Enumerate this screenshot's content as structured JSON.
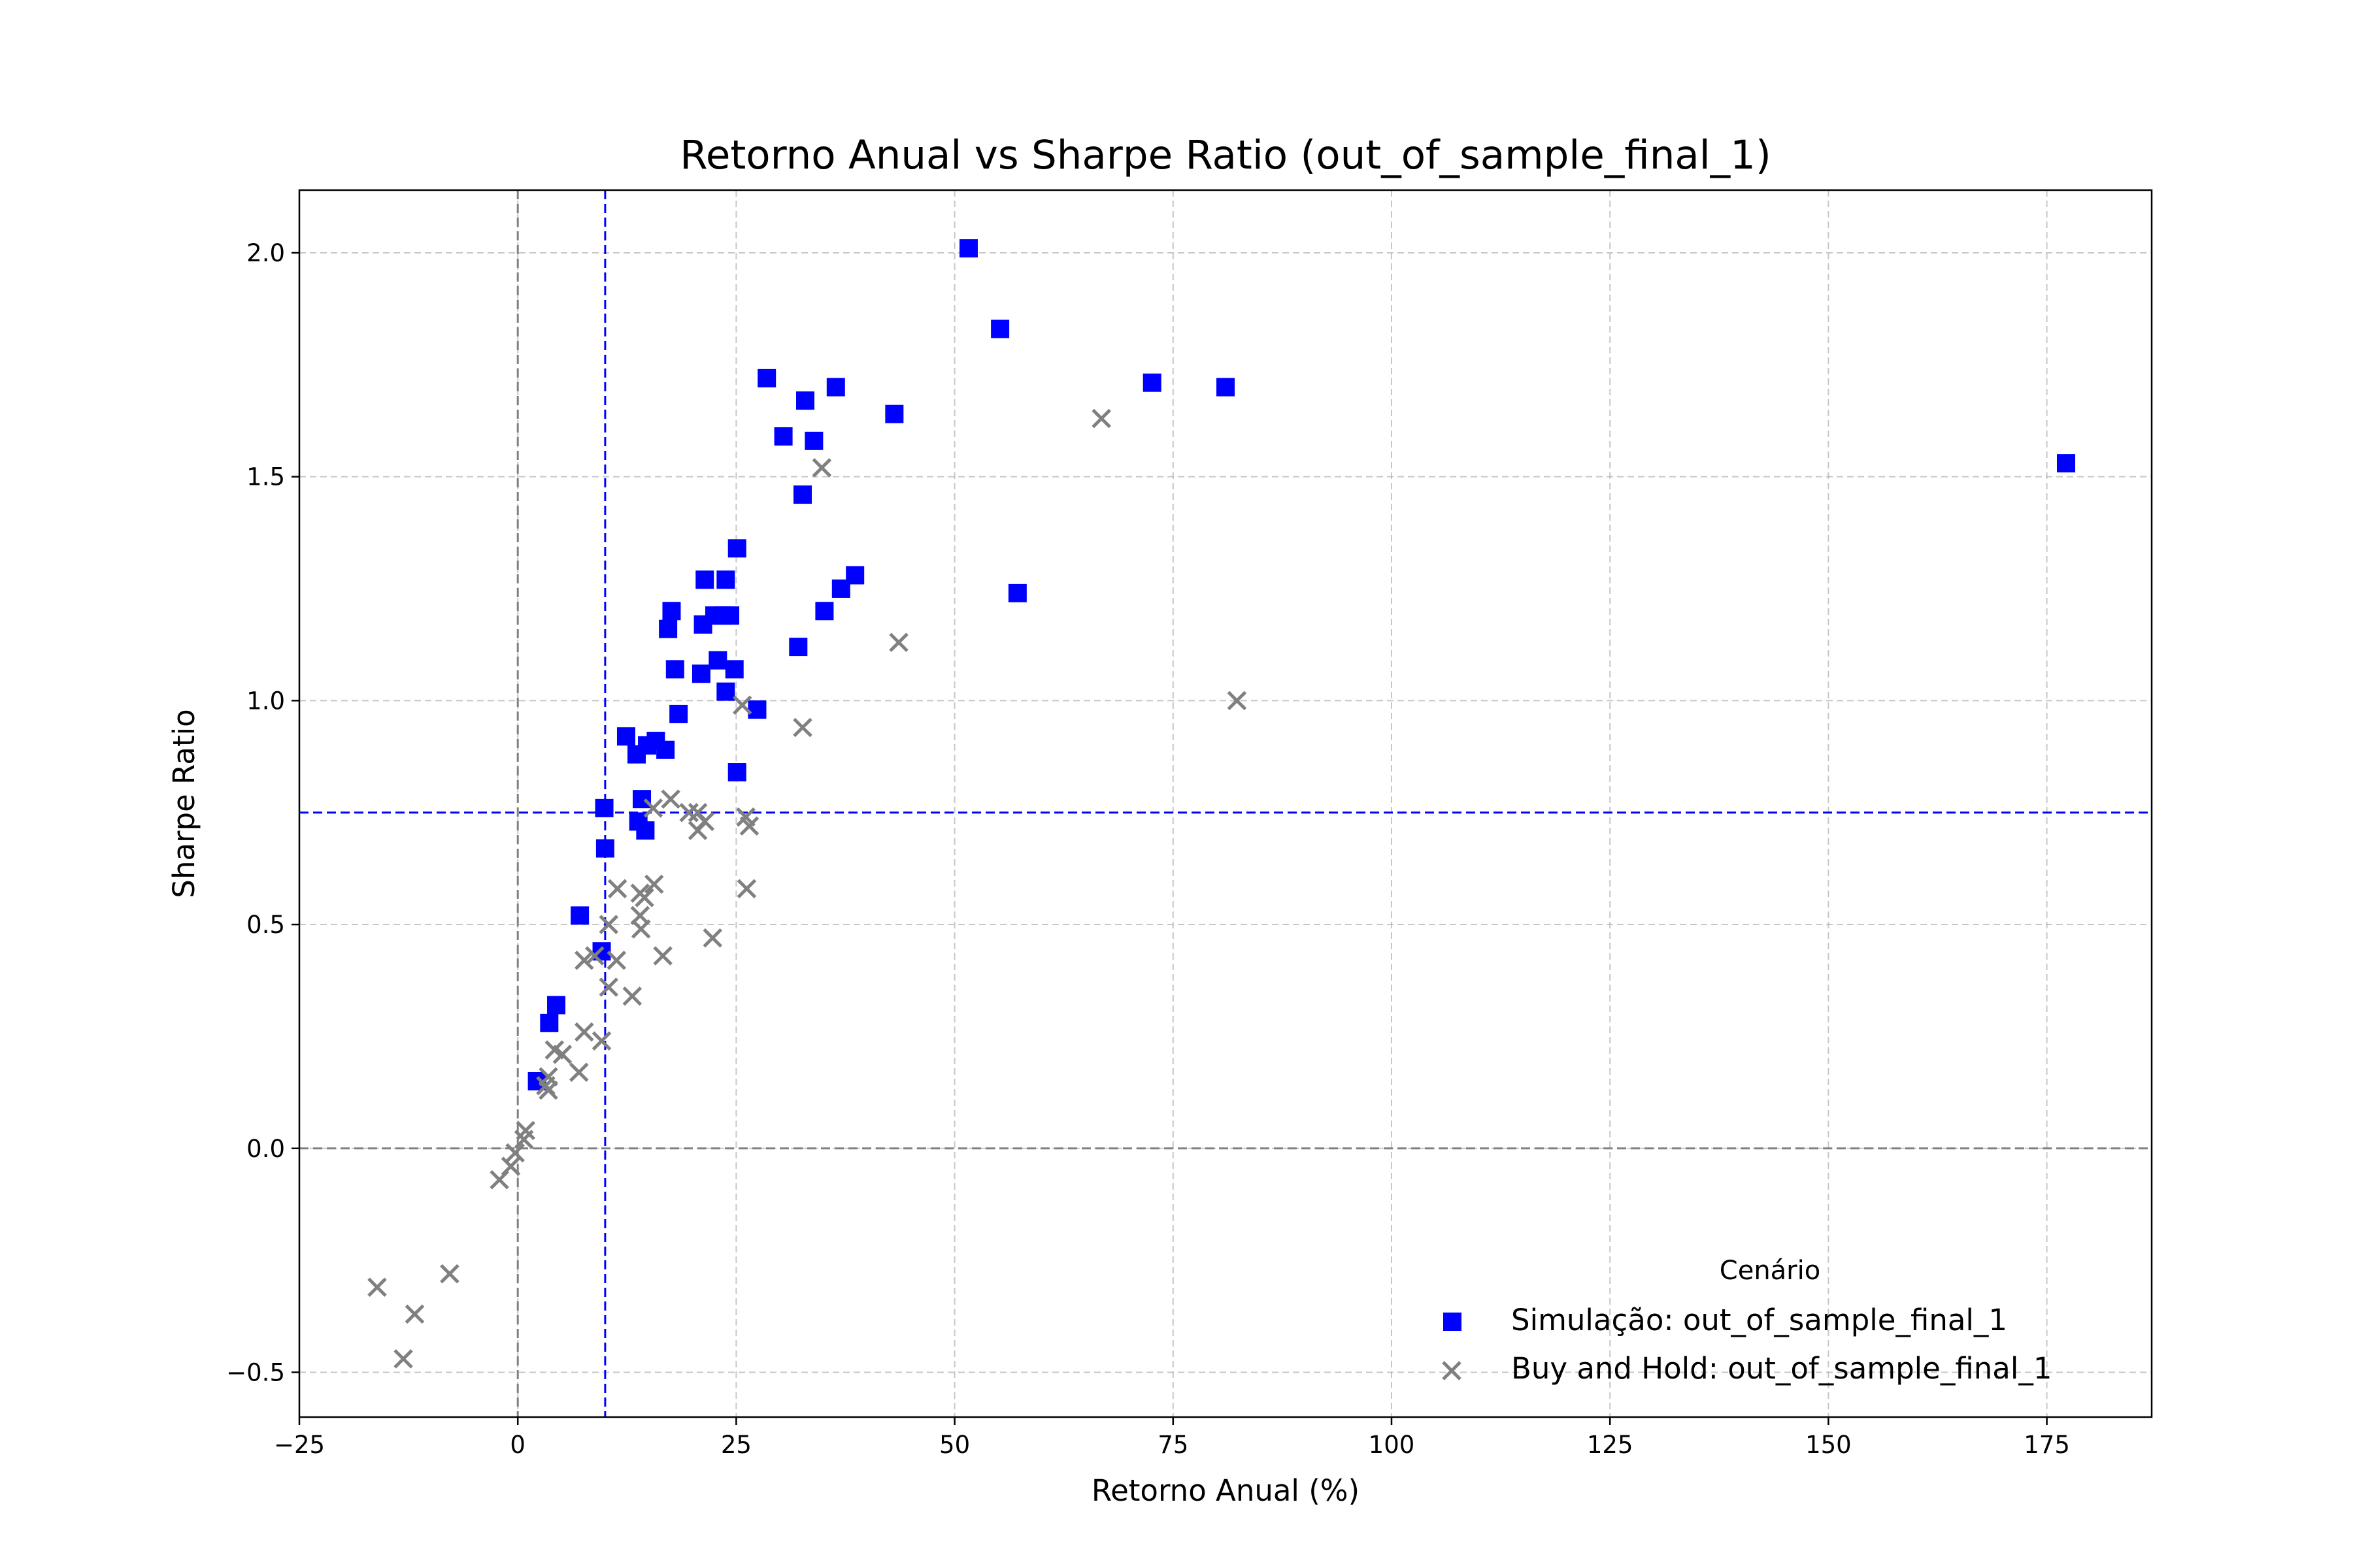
{
  "chart_data": {
    "type": "scatter",
    "title": "Retorno Anual vs Sharpe Ratio (out_of_sample_final_1)",
    "xlabel": "Retorno Anual (%)",
    "ylabel": "Sharpe Ratio",
    "xlim": [
      -25,
      187
    ],
    "ylim": [
      -0.6,
      2.14
    ],
    "xticks": [
      -25,
      0,
      25,
      50,
      75,
      100,
      125,
      150,
      175
    ],
    "xtick_labels": [
      "−25",
      "0",
      "25",
      "50",
      "75",
      "100",
      "125",
      "150",
      "175"
    ],
    "yticks": [
      -0.5,
      0.0,
      0.5,
      1.0,
      1.5,
      2.0
    ],
    "ytick_labels": [
      "−0.5",
      "0.0",
      "0.5",
      "1.0",
      "1.5",
      "2.0"
    ],
    "grid": true,
    "reference_lines": [
      {
        "axis": "x",
        "value": 0,
        "color": "#808080",
        "style": "dashed"
      },
      {
        "axis": "y",
        "value": 0,
        "color": "#808080",
        "style": "dashed"
      },
      {
        "axis": "x",
        "value": 10,
        "color": "#0000ff",
        "style": "dashed"
      },
      {
        "axis": "y",
        "value": 0.75,
        "color": "#0000ff",
        "style": "dashed"
      }
    ],
    "legend": {
      "title": "Cenário",
      "position": "lower-right"
    },
    "series": [
      {
        "name": "Simulação: out_of_sample_final_1",
        "marker": "square",
        "color": "#0000ff",
        "points": [
          [
            51.6,
            2.01
          ],
          [
            55.2,
            1.83
          ],
          [
            28.5,
            1.72
          ],
          [
            36.4,
            1.7
          ],
          [
            72.6,
            1.71
          ],
          [
            81.0,
            1.7
          ],
          [
            32.9,
            1.67
          ],
          [
            43.1,
            1.64
          ],
          [
            30.4,
            1.59
          ],
          [
            33.9,
            1.58
          ],
          [
            177.2,
            1.53
          ],
          [
            32.6,
            1.46
          ],
          [
            25.1,
            1.34
          ],
          [
            21.4,
            1.27
          ],
          [
            23.8,
            1.27
          ],
          [
            38.6,
            1.28
          ],
          [
            37.0,
            1.25
          ],
          [
            57.2,
            1.24
          ],
          [
            35.1,
            1.2
          ],
          [
            17.6,
            1.2
          ],
          [
            22.5,
            1.19
          ],
          [
            23.5,
            1.19
          ],
          [
            24.3,
            1.19
          ],
          [
            21.2,
            1.17
          ],
          [
            17.2,
            1.16
          ],
          [
            32.1,
            1.12
          ],
          [
            22.9,
            1.09
          ],
          [
            18.0,
            1.07
          ],
          [
            24.8,
            1.07
          ],
          [
            21.0,
            1.06
          ],
          [
            23.8,
            1.02
          ],
          [
            27.4,
            0.98
          ],
          [
            18.4,
            0.97
          ],
          [
            12.4,
            0.92
          ],
          [
            15.8,
            0.91
          ],
          [
            14.8,
            0.9
          ],
          [
            16.9,
            0.89
          ],
          [
            13.6,
            0.88
          ],
          [
            25.1,
            0.84
          ],
          [
            14.2,
            0.78
          ],
          [
            9.9,
            0.76
          ],
          [
            13.8,
            0.73
          ],
          [
            14.6,
            0.71
          ],
          [
            10.0,
            0.67
          ],
          [
            7.1,
            0.52
          ],
          [
            9.6,
            0.44
          ],
          [
            4.4,
            0.32
          ],
          [
            3.6,
            0.28
          ],
          [
            2.2,
            0.15
          ]
        ]
      },
      {
        "name": "Buy and Hold: out_of_sample_final_1",
        "marker": "x",
        "color": "#808080",
        "points": [
          [
            66.8,
            1.63
          ],
          [
            34.8,
            1.52
          ],
          [
            43.6,
            1.13
          ],
          [
            82.3,
            1.0
          ],
          [
            25.7,
            0.99
          ],
          [
            32.6,
            0.94
          ],
          [
            17.5,
            0.78
          ],
          [
            15.5,
            0.76
          ],
          [
            19.6,
            0.75
          ],
          [
            20.6,
            0.75
          ],
          [
            21.4,
            0.73
          ],
          [
            26.1,
            0.74
          ],
          [
            26.5,
            0.72
          ],
          [
            20.6,
            0.71
          ],
          [
            15.6,
            0.59
          ],
          [
            26.2,
            0.58
          ],
          [
            11.4,
            0.58
          ],
          [
            14.0,
            0.57
          ],
          [
            14.5,
            0.56
          ],
          [
            14.0,
            0.52
          ],
          [
            10.4,
            0.5
          ],
          [
            14.1,
            0.49
          ],
          [
            22.3,
            0.47
          ],
          [
            16.6,
            0.43
          ],
          [
            7.6,
            0.42
          ],
          [
            8.8,
            0.43
          ],
          [
            11.3,
            0.42
          ],
          [
            10.4,
            0.36
          ],
          [
            13.1,
            0.34
          ],
          [
            7.6,
            0.26
          ],
          [
            9.6,
            0.24
          ],
          [
            4.2,
            0.22
          ],
          [
            5.1,
            0.21
          ],
          [
            7.0,
            0.17
          ],
          [
            3.5,
            0.16
          ],
          [
            3.2,
            0.14
          ],
          [
            3.5,
            0.13
          ],
          [
            0.9,
            0.04
          ],
          [
            0.7,
            0.02
          ],
          [
            -0.3,
            -0.01
          ],
          [
            -0.8,
            -0.04
          ],
          [
            -2.1,
            -0.07
          ],
          [
            -7.8,
            -0.28
          ],
          [
            -16.1,
            -0.31
          ],
          [
            -11.8,
            -0.37
          ],
          [
            -13.1,
            -0.47
          ]
        ]
      }
    ]
  }
}
